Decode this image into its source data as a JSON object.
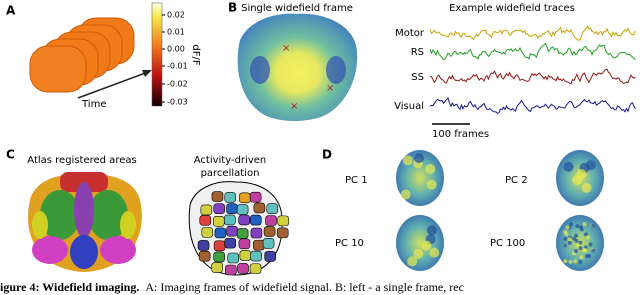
{
  "panel_a": {
    "label": "A",
    "colorbar_ticks": [
      "0.02",
      "0.01",
      "0.00",
      "-0.01",
      "-0.02",
      "-0.03"
    ],
    "colorbar_label": "dF/F",
    "time_label": "Time"
  },
  "panel_b": {
    "label": "B",
    "frame_title": "Single widefield frame",
    "traces_title": "Example widefield traces",
    "traces": [
      "Motor",
      "RS",
      "SS",
      "Visual"
    ],
    "scale_label": "100 frames"
  },
  "panel_c": {
    "label": "C",
    "atlas_title": "Atlas registered areas",
    "parcellation_title": [
      "Activity-driven",
      "parcellation"
    ]
  },
  "panel_d": {
    "label": "D",
    "components": [
      "PC 1",
      "PC 2",
      "PC 10",
      "PC 100"
    ]
  },
  "caption": {
    "bold": "igure 4:  Widefield imaging.",
    "text": "A: Imaging frames of widefield signal.  B: left - a single frame, rec"
  }
}
